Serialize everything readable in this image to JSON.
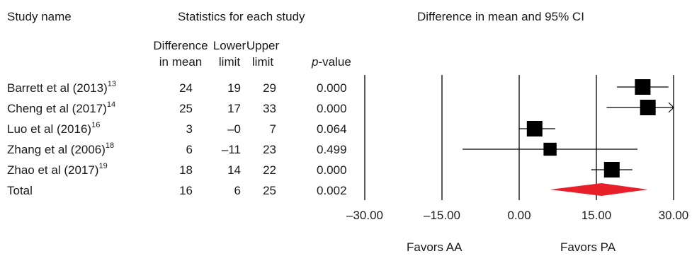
{
  "headers": {
    "study_name": "Study name",
    "stats_group": "Statistics for each study",
    "plot_title": "Difference in mean and 95% CI",
    "diff_line1": "Difference",
    "diff_line2": "in mean",
    "lower_line1": "Lower",
    "lower_line2": "limit",
    "upper_line1": "Upper",
    "upper_line2": "limit",
    "p_italic": "p",
    "p_rest": "-value"
  },
  "rows": [
    {
      "name": "Barrett et al (2013)",
      "ref": "13",
      "diff": "24",
      "lower": "19",
      "upper": "29",
      "p": "0.000"
    },
    {
      "name": "Cheng et al (2017)",
      "ref": "14",
      "diff": "25",
      "lower": "17",
      "upper": "33",
      "p": "0.000"
    },
    {
      "name": "Luo et al (2016)",
      "ref": "16",
      "diff": "3",
      "lower": "–0",
      "upper": "7",
      "p": "0.064"
    },
    {
      "name": "Zhang et al (2006)",
      "ref": "18",
      "diff": "6",
      "lower": "–11",
      "upper": "23",
      "p": "0.499"
    },
    {
      "name": "Zhao et al (2017)",
      "ref": "19",
      "diff": "18",
      "lower": "14",
      "upper": "22",
      "p": "0.000"
    },
    {
      "name": "Total",
      "ref": "",
      "diff": "16",
      "lower": "6",
      "upper": "25",
      "p": "0.002"
    }
  ],
  "axis_ticks": [
    "–30.00",
    "–15.00",
    "0.00",
    "15.00",
    "30.00"
  ],
  "favors": {
    "left": "Favors AA",
    "right": "Favors PA"
  },
  "colors": {
    "diamond": "#e8202a",
    "marker": "#000000"
  },
  "chart_data": {
    "type": "forest",
    "x_ticks": [
      -30,
      -15,
      0,
      15,
      30
    ],
    "xlim": [
      -30,
      30
    ],
    "studies": [
      {
        "name": "Barrett et al (2013)",
        "estimate": 24,
        "lower": 19,
        "upper": 29,
        "weight": 1.0
      },
      {
        "name": "Cheng et al (2017)",
        "estimate": 25,
        "lower": 17,
        "upper": 33,
        "weight": 1.0,
        "clipped_right": true
      },
      {
        "name": "Luo et al (2016)",
        "estimate": 3,
        "lower": 0,
        "upper": 7,
        "weight": 1.0
      },
      {
        "name": "Zhang et al (2006)",
        "estimate": 6,
        "lower": -11,
        "upper": 23,
        "weight": 0.7
      },
      {
        "name": "Zhao et al (2017)",
        "estimate": 18,
        "lower": 14,
        "upper": 22,
        "weight": 1.0
      }
    ],
    "total": {
      "name": "Total",
      "estimate": 16,
      "lower": 6,
      "upper": 25
    }
  }
}
